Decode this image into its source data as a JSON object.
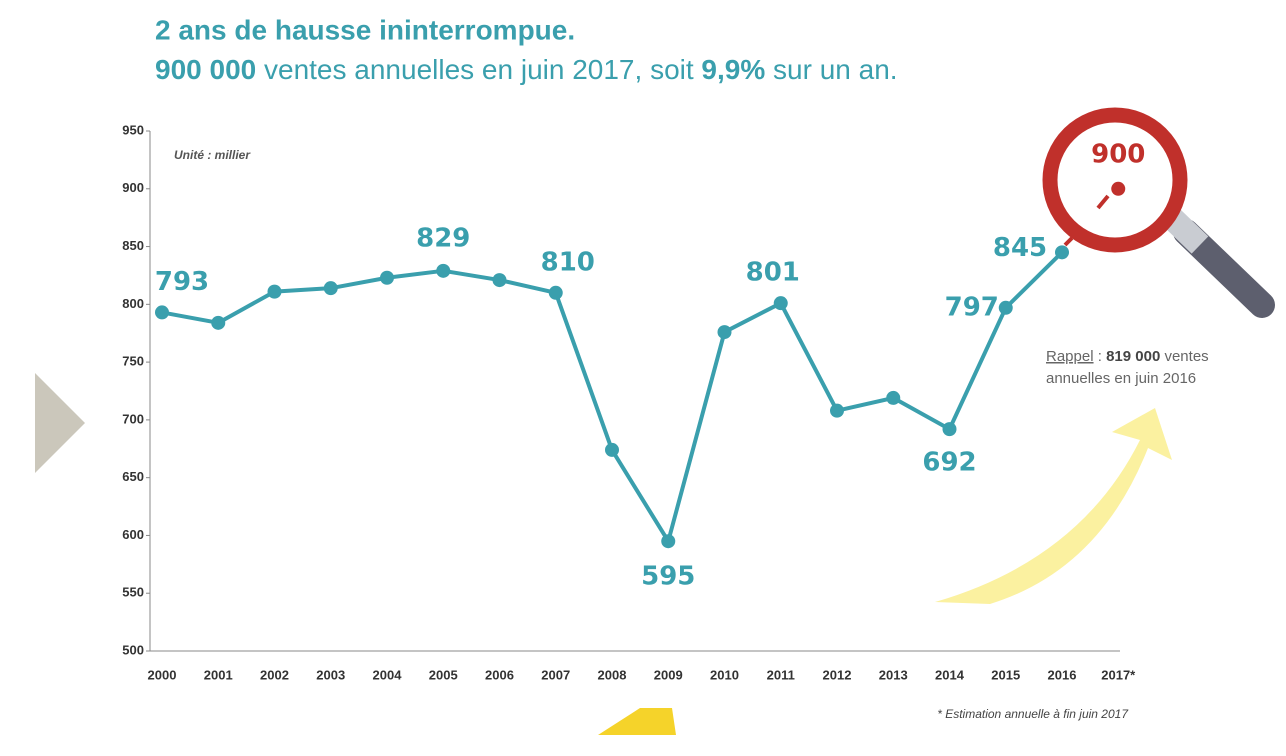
{
  "chart_data": {
    "type": "line",
    "title": "2 ans de hausse ininterrompue.",
    "subtitle": [
      "900 000",
      " ventes annuelles en juin 2017, soit ",
      "9,9%",
      " sur un an."
    ],
    "unit_note": "Unité : millier",
    "reminder": [
      "Rappel",
      " : ",
      "819 000",
      " ventes",
      "annuelles en juin 2016"
    ],
    "footnote": "* Estimation annuelle à fin juin 2017",
    "categories": [
      "2000",
      "2001",
      "2002",
      "2003",
      "2004",
      "2005",
      "2006",
      "2007",
      "2008",
      "2009",
      "2010",
      "2011",
      "2012",
      "2013",
      "2014",
      "2015",
      "2016",
      "2017*"
    ],
    "series": [
      {
        "color": "#3a9fad",
        "values": [
          793,
          784,
          811,
          814,
          823,
          829,
          821,
          810,
          674,
          595,
          776,
          801,
          708,
          719,
          692,
          797,
          845,
          null
        ],
        "value_labels": [
          "793",
          null,
          null,
          null,
          null,
          "829",
          null,
          "810",
          null,
          "595",
          null,
          "801",
          null,
          null,
          "692",
          "797",
          "845",
          null
        ]
      },
      {
        "color": "#c0302b",
        "values": [
          null,
          null,
          null,
          null,
          null,
          null,
          null,
          null,
          null,
          null,
          null,
          null,
          null,
          null,
          null,
          null,
          null,
          900
        ],
        "value_labels": [
          null,
          null,
          null,
          null,
          null,
          null,
          null,
          null,
          null,
          null,
          null,
          null,
          null,
          null,
          null,
          null,
          null,
          "900"
        ]
      }
    ],
    "ylim": [
      500,
      950
    ],
    "yticks": [
      500,
      550,
      600,
      650,
      700,
      750,
      800,
      850,
      900,
      950
    ],
    "grid": false
  }
}
